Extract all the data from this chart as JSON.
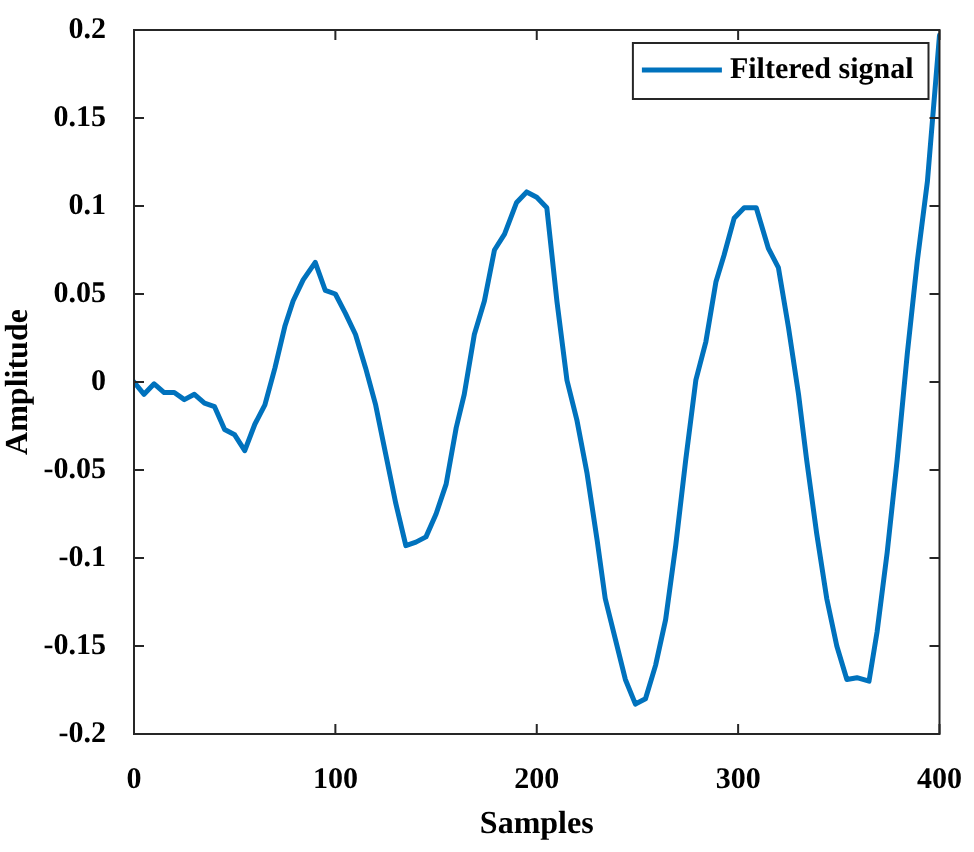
{
  "chart_data": {
    "type": "line",
    "xlabel": "Samples",
    "ylabel": "Amplitude",
    "xlim": [
      0,
      400
    ],
    "xticks": [
      0,
      100,
      200,
      300,
      400
    ],
    "ylim": [
      -0.2,
      0.2
    ],
    "yticks": [
      -0.2,
      -0.15,
      -0.1,
      -0.05,
      0,
      0.05,
      0.1,
      0.15,
      0.2
    ],
    "grid": false,
    "legend": "top right",
    "marker": "none",
    "line_style": "solid",
    "series": [
      {
        "name": "Filtered signal",
        "color": "#0072bd",
        "x": [
          0,
          5,
          10,
          15,
          20,
          25,
          30,
          35,
          40,
          45,
          50,
          55,
          60,
          65,
          70,
          75,
          79,
          84,
          90,
          95,
          100,
          105,
          110,
          115,
          120,
          125,
          130,
          135,
          140,
          145,
          150,
          155,
          160,
          164,
          169,
          174,
          179,
          184,
          190,
          195,
          200,
          205,
          210,
          215,
          220,
          225,
          230,
          234,
          239,
          244,
          249,
          254,
          259,
          264,
          269,
          274,
          279,
          284,
          289,
          293,
          298,
          303,
          309,
          315,
          320,
          325,
          330,
          334,
          339,
          344,
          349,
          354,
          359,
          365,
          369,
          374,
          379,
          384,
          389,
          394,
          400
        ],
        "values": [
          0,
          -0.007,
          -0.001,
          -0.006,
          -0.006,
          -0.01,
          -0.007,
          -0.012,
          -0.014,
          -0.027,
          -0.03,
          -0.039,
          -0.024,
          -0.013,
          0.008,
          0.032,
          0.046,
          0.058,
          0.068,
          0.052,
          0.05,
          0.039,
          0.027,
          0.008,
          -0.013,
          -0.041,
          -0.069,
          -0.093,
          -0.091,
          -0.088,
          -0.075,
          -0.058,
          -0.026,
          -0.007,
          0.027,
          0.046,
          0.075,
          0.084,
          0.102,
          0.108,
          0.105,
          0.099,
          0.046,
          0.001,
          -0.022,
          -0.052,
          -0.09,
          -0.123,
          -0.146,
          -0.169,
          -0.183,
          -0.18,
          -0.161,
          -0.135,
          -0.093,
          -0.044,
          0.001,
          0.023,
          0.057,
          0.072,
          0.093,
          0.099,
          0.099,
          0.076,
          0.065,
          0.031,
          -0.007,
          -0.044,
          -0.086,
          -0.123,
          -0.15,
          -0.169,
          -0.168,
          -0.17,
          -0.142,
          -0.097,
          -0.044,
          0.016,
          0.069,
          0.114,
          0.197
        ]
      }
    ]
  }
}
